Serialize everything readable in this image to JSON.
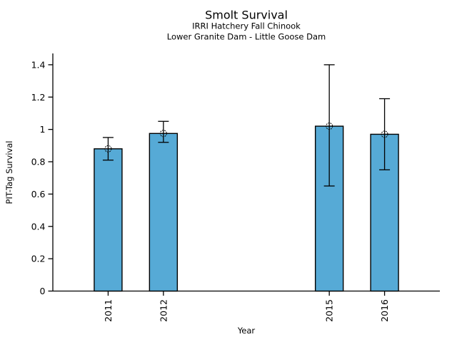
{
  "chart_data": {
    "type": "bar",
    "title": "Smolt Survival",
    "subtitle1": "IRRI Hatchery Fall Chinook",
    "subtitle2": "Lower Granite Dam - Little Goose Dam",
    "xlabel": "Year",
    "ylabel": "PIT-Tag Survival",
    "categories": [
      "2011",
      "2012",
      "2015",
      "2016"
    ],
    "x_years": [
      2011,
      2012,
      2015,
      2016
    ],
    "values": [
      0.88,
      0.975,
      1.02,
      0.97
    ],
    "error_low": [
      0.81,
      0.92,
      0.65,
      0.75
    ],
    "error_high": [
      0.95,
      1.05,
      1.4,
      1.19
    ],
    "yticks": [
      0,
      0.2,
      0.4,
      0.6,
      0.8,
      1,
      1.2,
      1.4
    ],
    "ytick_labels": [
      "0",
      "0.2",
      "0.4",
      "0.6",
      "0.8",
      "1",
      "1.2",
      "1.4"
    ],
    "ylim": [
      0,
      1.47
    ],
    "xlim": [
      2010,
      2017
    ],
    "bar_color": "#56AAD6",
    "edge_color": "#000000",
    "marker": "open-circle",
    "error_bars": "capped",
    "grid": false,
    "legend": "none"
  }
}
